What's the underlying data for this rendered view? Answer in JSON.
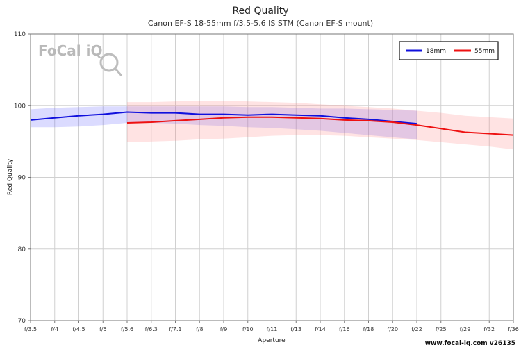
{
  "chart_data": {
    "type": "line",
    "title": "Red Quality",
    "subtitle": "Canon EF-S 18-55mm f/3.5-5.6 IS STM (Canon EF-S mount)",
    "xlabel": "Aperture",
    "ylabel": "Red Quality",
    "ylim": [
      70,
      110
    ],
    "yticks": [
      70,
      80,
      90,
      100,
      110
    ],
    "categories": [
      "f/3.5",
      "f/4",
      "f/4.5",
      "f/5",
      "f/5.6",
      "f/6.3",
      "f/7.1",
      "f/8",
      "f/9",
      "f/10",
      "f/11",
      "f/13",
      "f/14",
      "f/16",
      "f/18",
      "f/20",
      "f/22",
      "f/25",
      "f/29",
      "f/32",
      "f/36"
    ],
    "grid": true,
    "legend_position": "top-right",
    "credit": "www.focal-iq.com  v26135",
    "logo": "FoCal iQ",
    "series": [
      {
        "name": "18mm",
        "color": "#1010dd",
        "band_color": "#5a5aff",
        "x": [
          "f/3.5",
          "f/4",
          "f/4.5",
          "f/5",
          "f/5.6",
          "f/6.3",
          "f/7.1",
          "f/8",
          "f/9",
          "f/10",
          "f/11",
          "f/13",
          "f/14",
          "f/16",
          "f/18",
          "f/20",
          "f/22"
        ],
        "values": [
          98.0,
          98.3,
          98.6,
          98.8,
          99.1,
          99.0,
          99.0,
          98.8,
          98.8,
          98.7,
          98.8,
          98.7,
          98.6,
          98.3,
          98.1,
          97.8,
          97.5
        ],
        "upper": [
          99.5,
          99.7,
          99.8,
          99.9,
          99.9,
          99.9,
          99.9,
          99.9,
          99.9,
          99.8,
          99.8,
          99.7,
          99.6,
          99.6,
          99.5,
          99.4,
          99.3
        ],
        "lower": [
          97.0,
          97.0,
          97.1,
          97.3,
          97.6,
          97.6,
          97.5,
          97.3,
          97.2,
          97.0,
          96.9,
          96.7,
          96.5,
          96.2,
          95.9,
          95.6,
          95.3
        ]
      },
      {
        "name": "55mm",
        "color": "#ee1111",
        "band_color": "#ff8080",
        "x": [
          "f/5.6",
          "f/6.3",
          "f/7.1",
          "f/8",
          "f/9",
          "f/10",
          "f/11",
          "f/13",
          "f/14",
          "f/16",
          "f/18",
          "f/20",
          "f/22",
          "f/25",
          "f/29",
          "f/32",
          "f/36"
        ],
        "values": [
          97.6,
          97.7,
          97.9,
          98.1,
          98.3,
          98.4,
          98.4,
          98.3,
          98.2,
          98.0,
          97.9,
          97.7,
          97.3,
          96.8,
          96.3,
          96.1,
          95.9
        ],
        "upper": [
          100.5,
          100.5,
          100.6,
          100.7,
          100.7,
          100.6,
          100.5,
          100.4,
          100.2,
          100.0,
          99.8,
          99.6,
          99.3,
          99.0,
          98.6,
          98.4,
          98.2
        ],
        "lower": [
          94.9,
          95.0,
          95.1,
          95.3,
          95.4,
          95.6,
          95.8,
          95.9,
          95.9,
          95.8,
          95.6,
          95.4,
          95.2,
          94.9,
          94.6,
          94.3,
          93.9
        ]
      }
    ]
  }
}
